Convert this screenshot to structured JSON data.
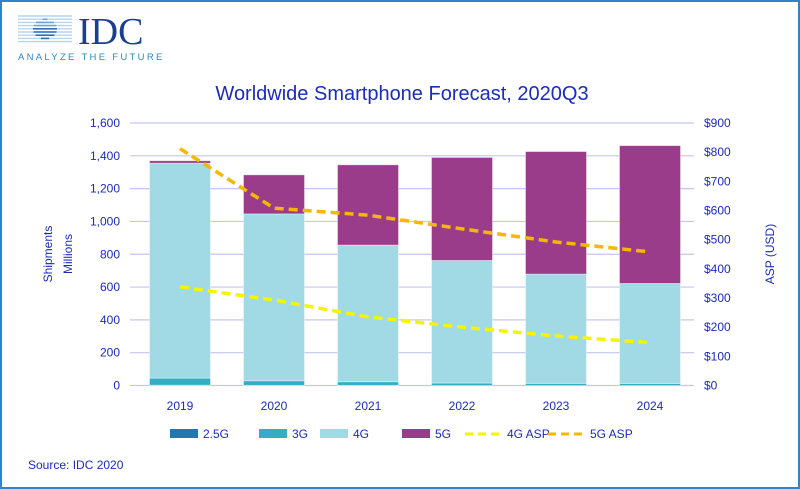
{
  "logo": {
    "name": "IDC",
    "tagline": "ANALYZE THE FUTURE"
  },
  "source": "Source: IDC 2020",
  "colors": {
    "2.5G": "#1f77b4",
    "3G": "#33aec6",
    "4G": "#a1d9e4",
    "5G": "#9b3c8b",
    "4G ASP": "#f5f500",
    "5G ASP": "#f5b800",
    "text": "#1a2bbf"
  },
  "chart_data": {
    "type": "bar",
    "stacked": true,
    "title": "Worldwide Smartphone Forecast, 2020Q3",
    "categories": [
      "2019",
      "2020",
      "2021",
      "2022",
      "2023",
      "2024"
    ],
    "ylabel": [
      "Shipments",
      "Millions"
    ],
    "ylim": [
      0,
      1600
    ],
    "yticks": [
      "0",
      "200",
      "400",
      "600",
      "800",
      "1,000",
      "1,200",
      "1,400",
      "1,600"
    ],
    "y2label": "ASP (USD)",
    "y2lim": [
      0,
      900
    ],
    "y2ticks": [
      "$0",
      "$100",
      "$200",
      "$300",
      "$400",
      "$500",
      "$600",
      "$700",
      "$800",
      "$900"
    ],
    "grid": true,
    "legend": "bottom",
    "series": [
      {
        "name": "2.5G",
        "type": "bar",
        "values": [
          2,
          1,
          1,
          0,
          0,
          0
        ]
      },
      {
        "name": "3G",
        "type": "bar",
        "values": [
          43,
          28,
          22,
          15,
          13,
          12
        ]
      },
      {
        "name": "4G",
        "type": "bar",
        "values": [
          1310,
          1017,
          833,
          747,
          666,
          610
        ]
      },
      {
        "name": "5G",
        "type": "bar",
        "values": [
          15,
          238,
          489,
          628,
          747,
          840
        ]
      },
      {
        "name": "4G ASP",
        "type": "line",
        "axis": "right",
        "values": [
          338,
          293,
          235,
          200,
          170,
          147
        ]
      },
      {
        "name": "5G ASP",
        "type": "line",
        "axis": "right",
        "values": [
          812,
          608,
          584,
          537,
          492,
          458
        ]
      }
    ]
  }
}
